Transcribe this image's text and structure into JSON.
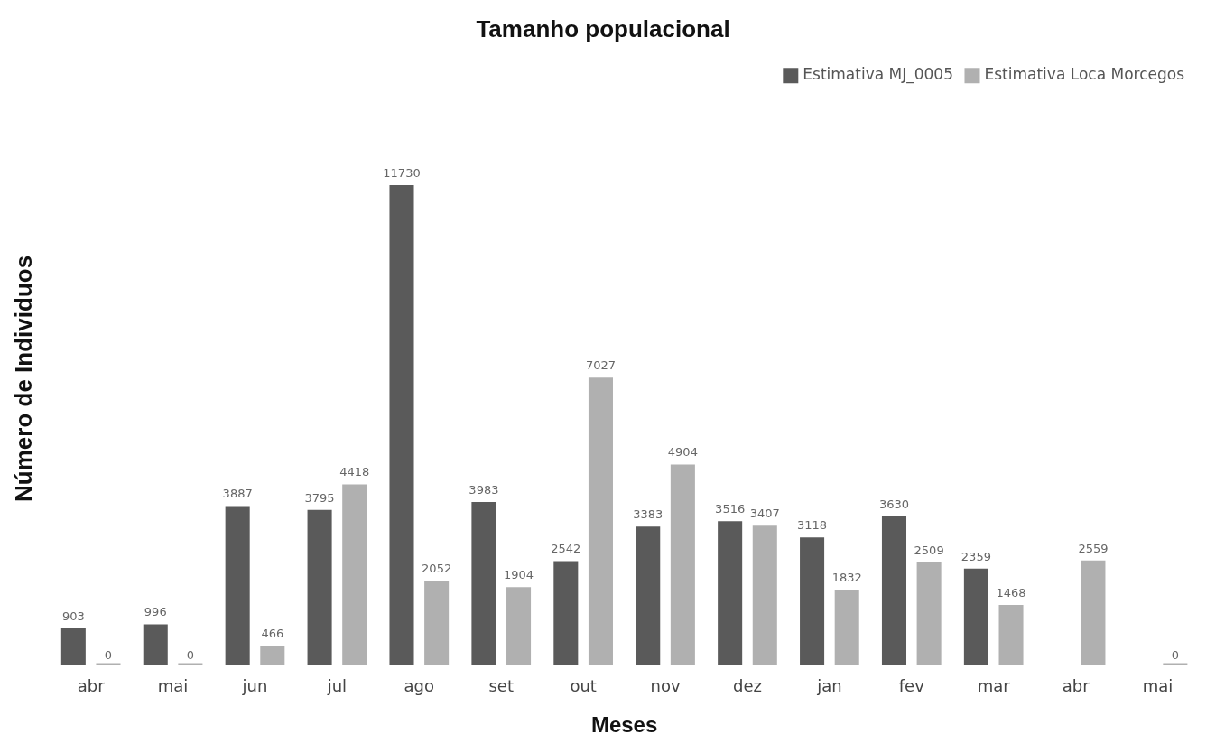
{
  "chart_data": {
    "type": "bar",
    "title": "Tamanho populacional",
    "xlabel": "Meses",
    "ylabel": "Número de Individuos",
    "categories": [
      "abr",
      "mai",
      "jun",
      "jul",
      "ago",
      "set",
      "out",
      "nov",
      "dez",
      "jan",
      "fev",
      "mar",
      "abr",
      "mai"
    ],
    "series": [
      {
        "name": "Estimativa MJ_0005",
        "color": "#5a5a5a",
        "values": [
          903,
          996,
          3887,
          3795,
          11730,
          3983,
          2542,
          3383,
          3516,
          3118,
          3630,
          2359,
          null,
          null
        ]
      },
      {
        "name": "Estimativa Loca Morcegos",
        "color": "#b0b0b0",
        "values": [
          0,
          0,
          466,
          4418,
          2052,
          1904,
          7027,
          4904,
          3407,
          1832,
          2509,
          1468,
          2559,
          0
        ]
      }
    ],
    "data_labels": true,
    "legend": "top right",
    "grid": false,
    "tick_labels": "x"
  }
}
